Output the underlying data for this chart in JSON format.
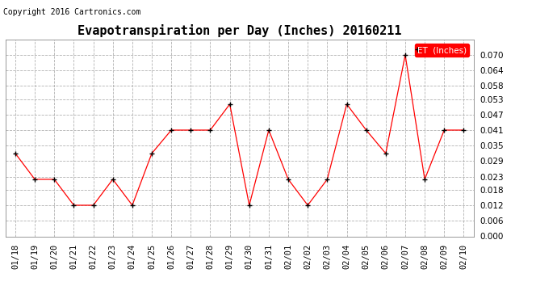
{
  "title": "Evapotranspiration per Day (Inches) 20160211",
  "copyright": "Copyright 2016 Cartronics.com",
  "legend_label": "ET  (Inches)",
  "dates": [
    "01/18",
    "01/19",
    "01/20",
    "01/21",
    "01/22",
    "01/23",
    "01/24",
    "01/25",
    "01/26",
    "01/27",
    "01/28",
    "01/29",
    "01/30",
    "01/31",
    "02/01",
    "02/02",
    "02/03",
    "02/04",
    "02/05",
    "02/06",
    "02/07",
    "02/08",
    "02/09",
    "02/10"
  ],
  "values": [
    0.032,
    0.022,
    0.022,
    0.012,
    0.012,
    0.022,
    0.012,
    0.032,
    0.041,
    0.041,
    0.041,
    0.051,
    0.012,
    0.041,
    0.022,
    0.012,
    0.022,
    0.051,
    0.041,
    0.032,
    0.07,
    0.022,
    0.041,
    0.041
  ],
  "line_color": "red",
  "marker_color": "black",
  "marker": "+",
  "ylim": [
    0.0,
    0.076
  ],
  "yticks": [
    0.0,
    0.006,
    0.012,
    0.018,
    0.023,
    0.029,
    0.035,
    0.041,
    0.047,
    0.053,
    0.058,
    0.064,
    0.07
  ],
  "background_color": "white",
  "grid_color": "#aaaaaa",
  "title_fontsize": 11,
  "copyright_fontsize": 7,
  "axis_fontsize": 7.5,
  "legend_fontsize": 7.5,
  "legend_bg": "red",
  "legend_text_color": "white"
}
